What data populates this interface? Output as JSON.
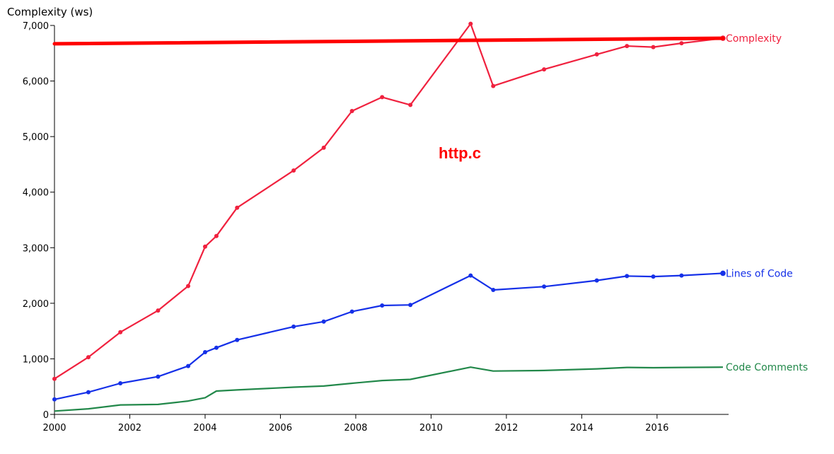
{
  "chart_data": {
    "type": "line",
    "title": "http.c",
    "ylabel": "Complexity (ws)",
    "xlabel": "",
    "xlim": [
      2000,
      2017.9
    ],
    "ylim": [
      0,
      7000
    ],
    "x_ticks": [
      {
        "value": 2000,
        "label": "2000"
      },
      {
        "value": 2002,
        "label": "2002"
      },
      {
        "value": 2004,
        "label": "2004"
      },
      {
        "value": 2006,
        "label": "2006"
      },
      {
        "value": 2008,
        "label": "2008"
      },
      {
        "value": 2010,
        "label": "2010"
      },
      {
        "value": 2012,
        "label": "2012"
      },
      {
        "value": 2014,
        "label": "2014"
      },
      {
        "value": 2016,
        "label": "2016"
      }
    ],
    "y_ticks": [
      {
        "value": 0,
        "label": "0"
      },
      {
        "value": 1000,
        "label": "1,000"
      },
      {
        "value": 2000,
        "label": "2,000"
      },
      {
        "value": 3000,
        "label": "3,000"
      },
      {
        "value": 4000,
        "label": "4,000"
      },
      {
        "value": 5000,
        "label": "5,000"
      },
      {
        "value": 6000,
        "label": "6,000"
      },
      {
        "value": 7000,
        "label": "7,000"
      }
    ],
    "series": [
      {
        "name": "Complexity",
        "color": "#f0213e",
        "markers": true,
        "x": [
          2000.0,
          2000.9,
          2001.75,
          2002.75,
          2003.55,
          2004.0,
          2004.3,
          2004.85,
          2006.35,
          2007.15,
          2007.9,
          2008.7,
          2009.45,
          2011.05,
          2011.65,
          2013.0,
          2014.4,
          2015.2,
          2015.9,
          2016.65,
          2017.75
        ],
        "values": [
          640,
          1030,
          1480,
          1870,
          2310,
          3020,
          3210,
          3720,
          4390,
          4800,
          5460,
          5710,
          5570,
          7030,
          5910,
          6210,
          6480,
          6630,
          6610,
          6680,
          6770
        ]
      },
      {
        "name": "Lines of Code",
        "color": "#1530e8",
        "markers": true,
        "x": [
          2000.0,
          2000.9,
          2001.75,
          2002.75,
          2003.55,
          2004.0,
          2004.3,
          2004.85,
          2006.35,
          2007.15,
          2007.9,
          2008.7,
          2009.45,
          2011.05,
          2011.65,
          2013.0,
          2014.4,
          2015.2,
          2015.9,
          2016.65,
          2017.75
        ],
        "values": [
          270,
          400,
          560,
          680,
          870,
          1120,
          1200,
          1340,
          1580,
          1670,
          1850,
          1960,
          1970,
          2500,
          2240,
          2300,
          2410,
          2490,
          2480,
          2500,
          2540
        ]
      },
      {
        "name": "Code Comments",
        "color": "#22884a",
        "markers": false,
        "x": [
          2000.0,
          2000.9,
          2001.75,
          2002.75,
          2003.55,
          2004.0,
          2004.3,
          2004.85,
          2006.35,
          2007.15,
          2007.9,
          2008.7,
          2009.45,
          2011.05,
          2011.65,
          2013.0,
          2014.4,
          2015.2,
          2015.9,
          2016.65,
          2017.75
        ],
        "values": [
          60,
          100,
          170,
          180,
          240,
          300,
          420,
          440,
          490,
          510,
          560,
          610,
          630,
          850,
          780,
          790,
          820,
          845,
          840,
          845,
          850
        ]
      }
    ],
    "trend_line": {
      "color": "#ff0000",
      "x": [
        2000.0,
        2017.75
      ],
      "values": [
        6670,
        6770
      ]
    },
    "grid": false,
    "legend": "inline labels at line ends"
  }
}
